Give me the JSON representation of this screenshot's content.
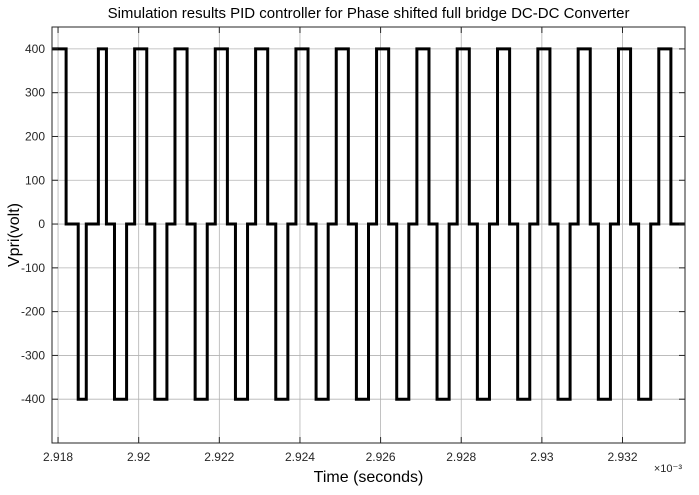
{
  "chart_data": {
    "type": "line",
    "title": "Simulation results PID controller for Phase shifted full bridge DC-DC Converter",
    "xlabel": "Time (seconds)",
    "ylabel": "Vpri(volt)",
    "x_exponent_label": "×10⁻³",
    "xlim": [
      2.91785,
      2.93355
    ],
    "ylim": [
      -500,
      450
    ],
    "xticks": [
      2.918,
      2.92,
      2.922,
      2.924,
      2.926,
      2.928,
      2.93,
      2.932
    ],
    "xtick_labels": [
      "2.918",
      "2.92",
      "2.922",
      "2.924",
      "2.926",
      "2.928",
      "2.93",
      "2.932"
    ],
    "yticks": [
      -400,
      -300,
      -200,
      -100,
      0,
      100,
      200,
      300,
      400
    ],
    "ytick_labels": [
      "-400",
      "-300",
      "-200",
      "-100",
      "0",
      "100",
      "200",
      "300",
      "400"
    ],
    "grid": true,
    "line_color": "#000000",
    "series": [
      {
        "x": [
          2.91785,
          2.9182,
          2.9182,
          2.9185,
          2.9185,
          2.9187,
          2.9187,
          2.919,
          2.919,
          2.9192,
          2.9192,
          2.9194,
          2.9194,
          2.9197,
          2.9197,
          2.9199,
          2.9199,
          2.9202,
          2.9202,
          2.9204,
          2.9204,
          2.9207,
          2.9207,
          2.9209,
          2.9209,
          2.9212,
          2.9212,
          2.9214,
          2.9214,
          2.9217,
          2.9217,
          2.9219,
          2.9219,
          2.9222,
          2.9222,
          2.9224,
          2.9224,
          2.9227,
          2.9227,
          2.9229,
          2.9229,
          2.9232,
          2.9232,
          2.9234,
          2.9234,
          2.9237,
          2.9237,
          2.9239,
          2.9239,
          2.9242,
          2.9242,
          2.9244,
          2.9244,
          2.9247,
          2.9247,
          2.9249,
          2.9249,
          2.9252,
          2.9252,
          2.9254,
          2.9254,
          2.9257,
          2.9257,
          2.9259,
          2.9259,
          2.9262,
          2.9262,
          2.9264,
          2.9264,
          2.9267,
          2.9267,
          2.9269,
          2.9269,
          2.9272,
          2.9272,
          2.9274,
          2.9274,
          2.9277,
          2.9277,
          2.9279,
          2.9279,
          2.9282,
          2.9282,
          2.9284,
          2.9284,
          2.9287,
          2.9287,
          2.9289,
          2.9289,
          2.9292,
          2.9292,
          2.9294,
          2.9294,
          2.9297,
          2.9297,
          2.9299,
          2.9299,
          2.9302,
          2.9302,
          2.9304,
          2.9304,
          2.9307,
          2.9307,
          2.9309,
          2.9309,
          2.9312,
          2.9312,
          2.9314,
          2.9314,
          2.9317,
          2.9317,
          2.9319,
          2.9319,
          2.9322,
          2.9322,
          2.9324,
          2.9324,
          2.9327,
          2.9327,
          2.9329,
          2.9329,
          2.9332,
          2.9332,
          2.93355
        ],
        "y": [
          400,
          400,
          0,
          0,
          -400,
          -400,
          0,
          0,
          400,
          400,
          0,
          0,
          -400,
          -400,
          0,
          0,
          400,
          400,
          0,
          0,
          -400,
          -400,
          0,
          0,
          400,
          400,
          0,
          0,
          -400,
          -400,
          0,
          0,
          400,
          400,
          0,
          0,
          -400,
          -400,
          0,
          0,
          400,
          400,
          0,
          0,
          -400,
          -400,
          0,
          0,
          400,
          400,
          0,
          0,
          -400,
          -400,
          0,
          0,
          400,
          400,
          0,
          0,
          -400,
          -400,
          0,
          0,
          400,
          400,
          0,
          0,
          -400,
          -400,
          0,
          0,
          400,
          400,
          0,
          0,
          -400,
          -400,
          0,
          0,
          400,
          400,
          0,
          0,
          -400,
          -400,
          0,
          0,
          400,
          400,
          0,
          0,
          -400,
          -400,
          0,
          0,
          400,
          400,
          0,
          0,
          -400,
          -400,
          0,
          0,
          400,
          400,
          0,
          0,
          -400,
          -400,
          0,
          0,
          400,
          400,
          0,
          0,
          -400,
          -400,
          0,
          0,
          400,
          400,
          0,
          0
        ]
      }
    ]
  }
}
